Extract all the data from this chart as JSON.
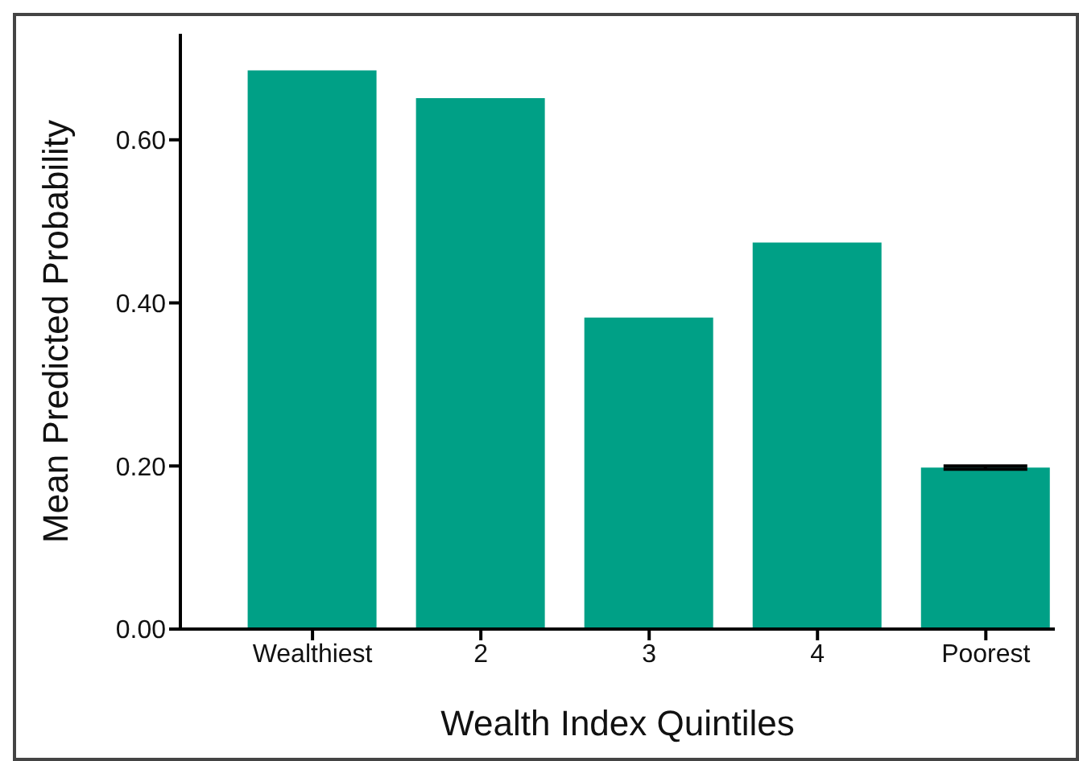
{
  "chart_data": {
    "type": "bar",
    "xlabel": "Wealth Index Quintiles",
    "ylabel": "Mean Predicted Probability",
    "categories": [
      "Wealthiest",
      "2",
      "3",
      "4",
      "Poorest"
    ],
    "values": [
      0.685,
      0.651,
      0.382,
      0.474,
      0.198
    ],
    "errors": [
      null,
      null,
      null,
      null,
      0.002
    ],
    "color": "#00a086",
    "ylim": [
      0,
      0.73
    ],
    "yticks": [
      {
        "value": 0,
        "label": "0.00"
      },
      {
        "value": 0.2,
        "label": "0.20"
      },
      {
        "value": 0.4,
        "label": "0.40"
      },
      {
        "value": 0.6,
        "label": "0.60"
      }
    ],
    "grid": false,
    "legend": false
  }
}
